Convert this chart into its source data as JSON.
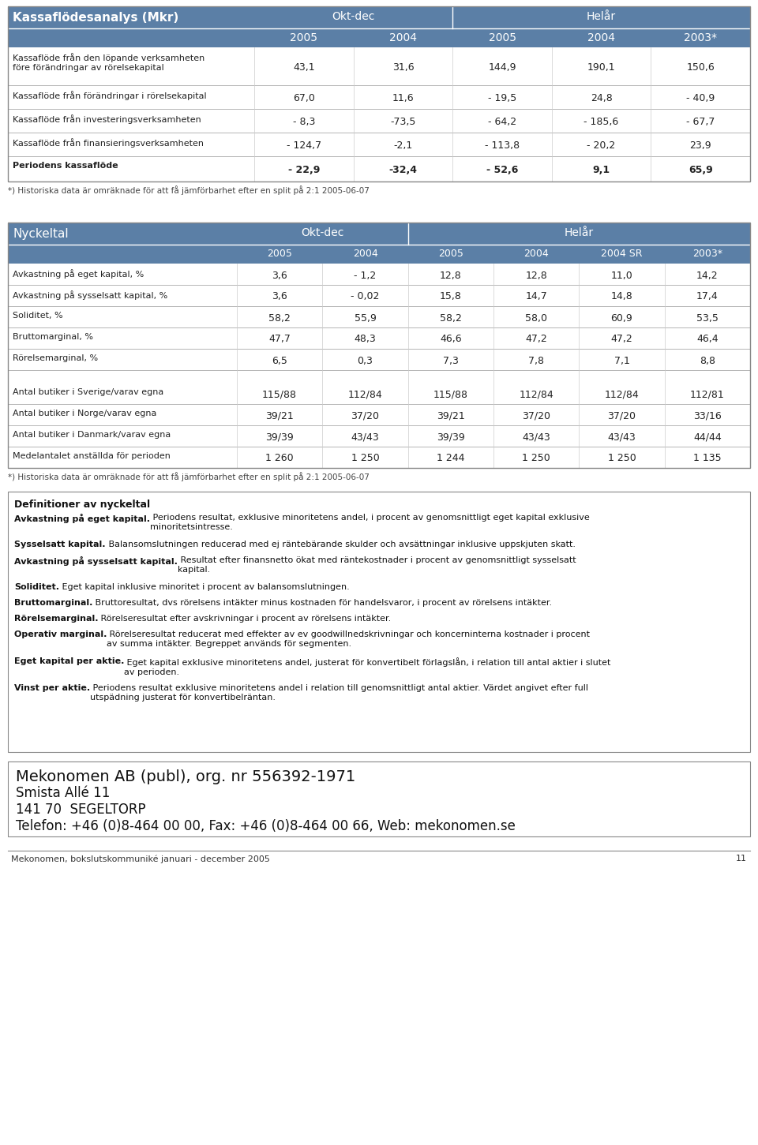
{
  "page_bg": "#ffffff",
  "header_bg": "#5b7fa6",
  "header_text": "#ffffff",
  "border_color": "#aaaaaa",
  "text_color": "#222222",
  "table1_title": "Kassaflödesanalys (Mkr)",
  "table1_col_subheaders": [
    "2005",
    "2004",
    "2005",
    "2004",
    "2003*"
  ],
  "table1_rows": [
    [
      "Kassaflöde från den löpande verksamheten\nföre förändringar av rörelsekapital",
      "43,1",
      "31,6",
      "144,9",
      "190,1",
      "150,6"
    ],
    [
      "Kassaflöde från förändringar i rörelsekapital",
      "67,0",
      "11,6",
      "- 19,5",
      "24,8",
      "- 40,9"
    ],
    [
      "Kassaflöde från investeringsverksamheten",
      "- 8,3",
      "-73,5",
      "- 64,2",
      "- 185,6",
      "- 67,7"
    ],
    [
      "Kassaflöde från finansieringsverksamheten",
      "- 124,7",
      "-2,1",
      "- 113,8",
      "- 20,2",
      "23,9"
    ],
    [
      "Periodens kassaflöde",
      "- 22,9",
      "-32,4",
      "- 52,6",
      "9,1",
      "65,9"
    ]
  ],
  "table1_footnote": "*) Historiska data är omräknade för att få jämförbarhet efter en split på 2:1 2005-06-07",
  "table2_title": "Nyckeltal",
  "table2_col_subheaders": [
    "2005",
    "2004",
    "2005",
    "2004",
    "2004 SR",
    "2003*"
  ],
  "table2_rows": [
    [
      "Avkastning på eget kapital, %",
      "3,6",
      "- 1,2",
      "12,8",
      "12,8",
      "11,0",
      "14,2"
    ],
    [
      "Avkastning på sysselsatt kapital, %",
      "3,6",
      "- 0,02",
      "15,8",
      "14,7",
      "14,8",
      "17,4"
    ],
    [
      "Soliditet, %",
      "58,2",
      "55,9",
      "58,2",
      "58,0",
      "60,9",
      "53,5"
    ],
    [
      "Bruttomarginal, %",
      "47,7",
      "48,3",
      "46,6",
      "47,2",
      "47,2",
      "46,4"
    ],
    [
      "Rörelsemarginal, %",
      "6,5",
      "0,3",
      "7,3",
      "7,8",
      "7,1",
      "8,8"
    ],
    [
      "",
      "",
      "",
      "",
      "",
      "",
      ""
    ],
    [
      "Antal butiker i Sverige/varav egna",
      "115/88",
      "112/84",
      "115/88",
      "112/84",
      "112/84",
      "112/81"
    ],
    [
      "Antal butiker i Norge/varav egna",
      "39/21",
      "37/20",
      "39/21",
      "37/20",
      "37/20",
      "33/16"
    ],
    [
      "Antal butiker i Danmark/varav egna",
      "39/39",
      "43/43",
      "39/39",
      "43/43",
      "43/43",
      "44/44"
    ],
    [
      "Medelantalet anställda för perioden",
      "1 260",
      "1 250",
      "1 244",
      "1 250",
      "1 250",
      "1 135"
    ]
  ],
  "table2_footnote": "*) Historiska data är omräknade för att få jämförbarhet efter en split på 2:1 2005-06-07",
  "definitions_title": "Definitioner av nyckeltal",
  "definitions": [
    {
      "bold": "Avkastning på eget kapital.",
      "normal": " Periodens resultat, exklusive minoritetens andel, i procent av genomsnittligt eget kapital exklusive\nminoritetsintresse."
    },
    {
      "bold": "Sysselsatt kapital.",
      "normal": " Balansomslutningen reducerad med ej räntebärande skulder och avsättningar inklusive uppskjuten skatt."
    },
    {
      "bold": "Avkastning på sysselsatt kapital.",
      "normal": " Resultat efter finansnetto ökat med räntekostnader i procent av genomsnittligt sysselsatt\nkapital."
    },
    {
      "bold": "Soliditet.",
      "normal": " Eget kapital inklusive minoritet i procent av balansomslutningen."
    },
    {
      "bold": "Bruttomarginal.",
      "normal": " Bruttoresultat, dvs rörelsens intäkter minus kostnaden för handelsvaror, i procent av rörelsens intäkter."
    },
    {
      "bold": "Rörelsemarginal.",
      "normal": " Rörelseresultat efter avskrivningar i procent av rörelsens intäkter."
    },
    {
      "bold": "Operativ marginal.",
      "normal": " Rörelseresultat reducerat med effekter av ev goodwillnedskrivningar och koncerninterna kostnader i procent\nav summa intäkter. Begreppet används för segmenten."
    },
    {
      "bold": "Eget kapital per aktie.",
      "normal": " Eget kapital exklusive minoritetens andel, justerat för konvertibelt förlagslån, i relation till antal aktier i slutet\nav perioden."
    },
    {
      "bold": "Vinst per aktie.",
      "normal": " Periodens resultat exklusive minoritetens andel i relation till genomsnittligt antal aktier. Värdet angivet efter full\nutspädning justerat för konvertibelräntan."
    }
  ],
  "contact_lines": [
    "Mekonomen AB (publ), org. nr 556392-1971",
    "Smista Allé 11",
    "141 70  SEGELTORP",
    "Telefon: +46 (0)8-464 00 00, Fax: +46 (0)8-464 00 66, Web: mekonomen.se"
  ],
  "footer_text": "Mekonomen, bokslutskommuniké januari - december 2005",
  "footer_page": "11"
}
